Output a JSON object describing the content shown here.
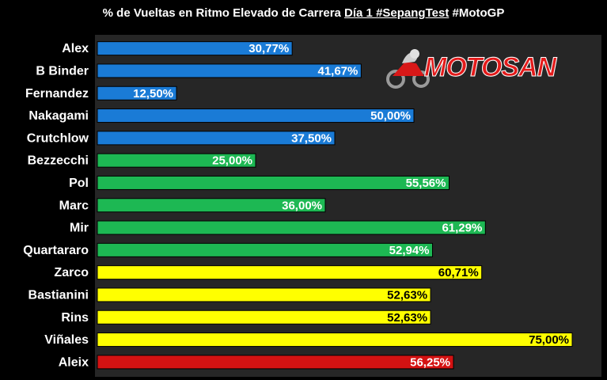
{
  "header": {
    "title_part1": "% de Vueltas en Ritmo Elevado de Carrera ",
    "title_underlined": "Día 1 #SepangTest",
    "title_part2": "  #MotoGP"
  },
  "logo": {
    "text": "MOTOSAN",
    "icon": "motorbike-rider-icon"
  },
  "colors": {
    "blue": "#1a7bd6",
    "green": "#1db853",
    "yellow": "#ffff00",
    "red": "#d41212"
  },
  "chart_data": {
    "type": "bar",
    "orientation": "horizontal",
    "title": "% de Vueltas en Ritmo Elevado de Carrera Día 1 #SepangTest  #MotoGP",
    "xlim": [
      0,
      100
    ],
    "grid": false,
    "categories": [
      "Alex",
      "B Binder",
      "Fernandez",
      "Nakagami",
      "Crutchlow",
      "Bezzecchi",
      "Pol",
      "Marc",
      "Mir",
      "Quartararo",
      "Zarco",
      "Bastianini",
      "Rins",
      "Viñales",
      "Aleix"
    ],
    "values": [
      30.77,
      41.67,
      12.5,
      50.0,
      37.5,
      25.0,
      55.56,
      36.0,
      61.29,
      52.94,
      60.71,
      52.63,
      52.63,
      75.0,
      56.25
    ],
    "data_labels": [
      "30,77%",
      "41,67%",
      "12,50%",
      "50,00%",
      "37,50%",
      "25,00%",
      "55,56%",
      "36,00%",
      "61,29%",
      "52,94%",
      "60,71%",
      "52,63%",
      "52,63%",
      "75,00%",
      "56,25%"
    ],
    "bar_colors": [
      "blue",
      "blue",
      "blue",
      "blue",
      "blue",
      "green",
      "green",
      "green",
      "green",
      "green",
      "yellow",
      "yellow",
      "yellow",
      "yellow",
      "red"
    ]
  }
}
